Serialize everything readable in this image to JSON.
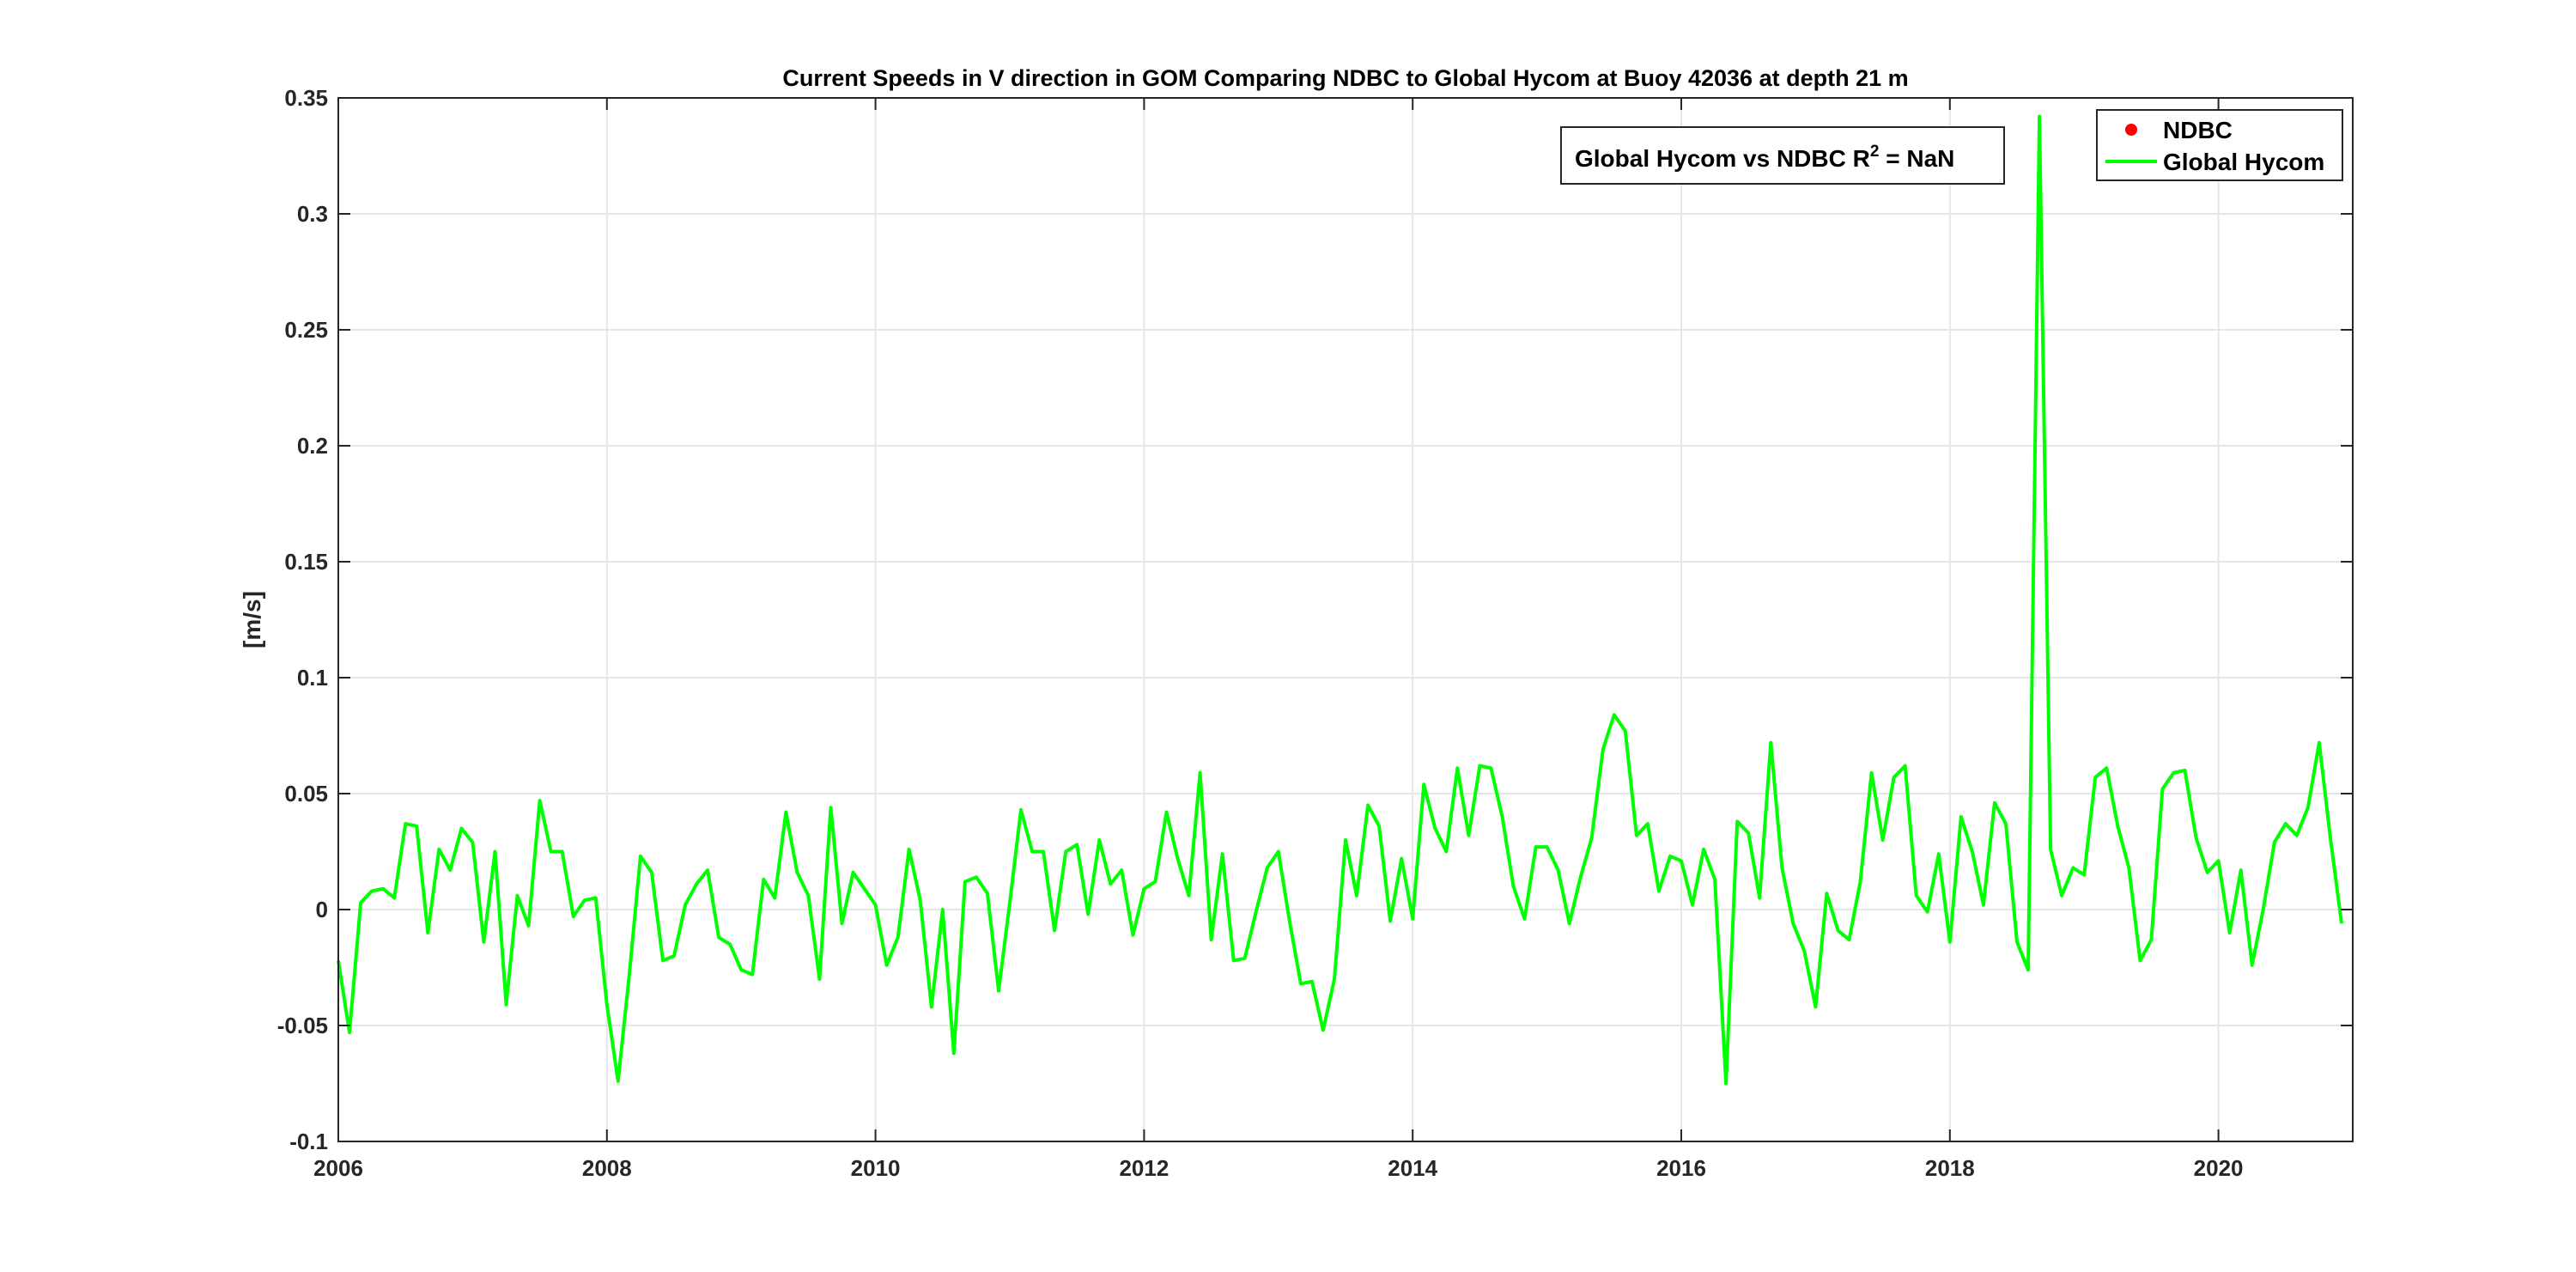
{
  "chart_data": {
    "type": "line",
    "title": "Current Speeds in V direction in GOM Comparing NDBC to Global Hycom at Buoy  42036  at depth  21 m",
    "xlabel": "",
    "ylabel": "[m/s]",
    "xlim": [
      2006,
      2021
    ],
    "ylim": [
      -0.1,
      0.35
    ],
    "xticks": [
      "2006",
      "2008",
      "2010",
      "2012",
      "2014",
      "2016",
      "2018",
      "2020"
    ],
    "yticks": [
      "-0.1",
      "-0.05",
      "0",
      "0.05",
      "0.1",
      "0.15",
      "0.2",
      "0.25",
      "0.3",
      "0.35"
    ],
    "grid": true,
    "legend": {
      "position": "top-right",
      "entries": [
        {
          "label": "NDBC",
          "color": "#ff0000",
          "marker": "dot"
        },
        {
          "label": "Global Hycom",
          "color": "#00ff00",
          "marker": "line"
        }
      ]
    },
    "annotation": {
      "prefix": "Global Hycom vs NDBC R",
      "superscript": "2",
      "suffix": " = NaN"
    },
    "series": [
      {
        "name": "NDBC",
        "color": "#ff0000",
        "values": []
      },
      {
        "name": "Global Hycom",
        "color": "#00ff00",
        "x_start": 2006,
        "x_step_years": 0.0833333,
        "values": [
          -0.022,
          -0.053,
          0.003,
          0.008,
          0.009,
          0.005,
          0.037,
          0.036,
          -0.01,
          0.026,
          0.017,
          0.035,
          0.029,
          -0.014,
          0.025,
          -0.041,
          0.006,
          -0.007,
          0.047,
          0.025,
          0.025,
          -0.003,
          0.004,
          0.005,
          -0.041,
          -0.074,
          -0.028,
          0.023,
          0.016,
          -0.022,
          -0.02,
          0.002,
          0.011,
          0.017,
          -0.012,
          -0.015,
          -0.026,
          -0.028,
          0.013,
          0.005,
          0.042,
          0.016,
          0.006,
          -0.03,
          0.044,
          -0.006,
          0.016,
          0.009,
          0.002,
          -0.024,
          -0.012,
          0.026,
          0.004,
          -0.042,
          0.0,
          -0.062,
          0.012,
          0.014,
          0.007,
          -0.035,
          0.003,
          0.043,
          0.025,
          0.025,
          -0.009,
          0.025,
          0.028,
          -0.002,
          0.03,
          0.011,
          0.017,
          -0.011,
          0.009,
          0.012,
          0.042,
          0.022,
          0.006,
          0.059,
          -0.013,
          0.024,
          -0.022,
          -0.021,
          -0.001,
          0.018,
          0.025,
          -0.005,
          -0.032,
          -0.031,
          -0.052,
          -0.03,
          0.03,
          0.006,
          0.045,
          0.036,
          -0.005,
          0.022,
          -0.004,
          0.054,
          0.035,
          0.025,
          0.061,
          0.032,
          0.062,
          0.061,
          0.04,
          0.01,
          -0.004,
          0.027,
          0.027,
          0.017,
          -0.006,
          0.014,
          0.031,
          0.069,
          0.084,
          0.077,
          0.032,
          0.037,
          0.008,
          0.023,
          0.021,
          0.002,
          0.026,
          0.013,
          -0.075,
          0.038,
          0.033,
          0.005,
          0.072,
          0.018,
          -0.006,
          -0.018,
          -0.042,
          0.007,
          -0.009,
          -0.013,
          0.012,
          0.059,
          0.03,
          0.057,
          0.062,
          0.006,
          -0.001,
          0.024,
          -0.014,
          0.04,
          0.025,
          0.002,
          0.046,
          0.037,
          -0.014,
          -0.026,
          0.342,
          0.026,
          0.006,
          0.018,
          0.015,
          0.057,
          0.061,
          0.036,
          0.018,
          -0.022,
          -0.013,
          0.052,
          0.059,
          0.06,
          0.031,
          0.016,
          0.021,
          -0.01,
          0.017,
          -0.024,
          0.0,
          0.029,
          0.037,
          0.032,
          0.044,
          0.072,
          0.031,
          -0.006
        ]
      }
    ]
  }
}
